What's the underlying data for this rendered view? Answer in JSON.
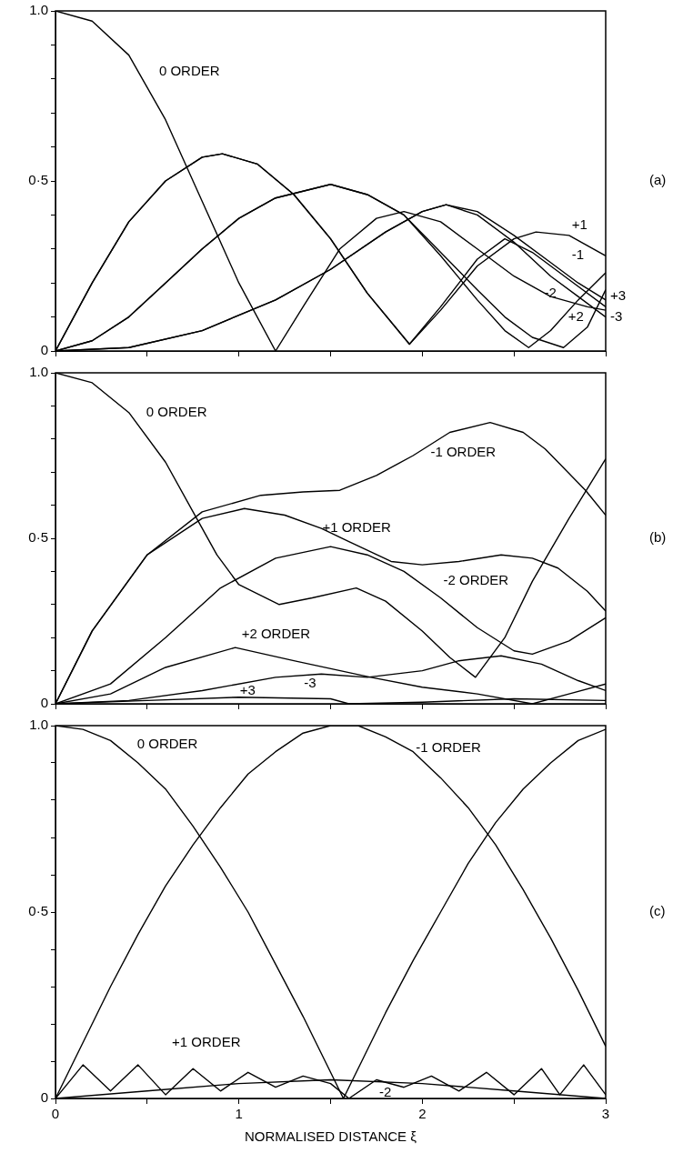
{
  "chart_data": [
    {
      "type": "line",
      "marker": "none",
      "tick_labels": "y",
      "xlim": [
        0,
        3
      ],
      "ylim": [
        0,
        1
      ],
      "xticks": [
        0,
        {
          "value": 0.5,
          "label": null
        },
        {
          "value": 1,
          "label": null
        },
        {
          "value": 1.5,
          "label": null
        },
        {
          "value": 2,
          "label": null
        },
        {
          "value": 2.5,
          "label": null
        },
        {
          "value": 3,
          "label": null
        }
      ],
      "yticks": [
        {
          "value": 0,
          "label": "0"
        },
        {
          "value": 0.1,
          "label": null
        },
        {
          "value": 0.2,
          "label": null
        },
        {
          "value": 0.3,
          "label": null
        },
        {
          "value": 0.4,
          "label": null
        },
        {
          "value": 0.5,
          "label": "0·5"
        },
        {
          "value": 0.6,
          "label": null
        },
        {
          "value": 0.7,
          "label": null
        },
        {
          "value": 0.8,
          "label": null
        },
        {
          "value": 0.9,
          "label": null
        },
        {
          "value": 1,
          "label": "1.0"
        }
      ],
      "series": [
        {
          "color": "#000000",
          "x": [
            0,
            0.2,
            0.4,
            0.6,
            0.8,
            1.0,
            1.2,
            1.35,
            1.55,
            1.75,
            1.9,
            2.1,
            2.3,
            2.5,
            2.7,
            2.9,
            3
          ],
          "values": [
            1,
            0.97,
            0.87,
            0.68,
            0.44,
            0.2,
            0.0,
            0.13,
            0.3,
            0.39,
            0.41,
            0.38,
            0.3,
            0.22,
            0.16,
            0.13,
            0.12
          ]
        },
        {
          "color": "#000000",
          "x": [
            0,
            0.2,
            0.4,
            0.6,
            0.8,
            0.91,
            1.1,
            1.3,
            1.5,
            1.7,
            1.93,
            2.1,
            2.3,
            2.5,
            2.62,
            2.8,
            3
          ],
          "values": [
            0,
            0.2,
            0.38,
            0.5,
            0.57,
            0.58,
            0.55,
            0.46,
            0.33,
            0.17,
            0.02,
            0.12,
            0.25,
            0.33,
            0.35,
            0.34,
            0.28
          ]
        },
        {
          "color": "#000000",
          "x": [
            0,
            0.2,
            0.4,
            0.6,
            0.8,
            0.91,
            1.1,
            1.3,
            1.5,
            1.7,
            1.93,
            2.1,
            2.3,
            2.45,
            2.6,
            2.8,
            3
          ],
          "values": [
            0,
            0.2,
            0.38,
            0.5,
            0.57,
            0.58,
            0.55,
            0.46,
            0.33,
            0.17,
            0.02,
            0.13,
            0.27,
            0.33,
            0.29,
            0.21,
            0.13
          ]
        },
        {
          "color": "#000000",
          "x": [
            0,
            0.2,
            0.4,
            0.6,
            0.8,
            1.0,
            1.2,
            1.5,
            1.7,
            1.9,
            2.1,
            2.3,
            2.45,
            2.58,
            2.7,
            2.85,
            3
          ],
          "values": [
            0,
            0.03,
            0.1,
            0.2,
            0.3,
            0.39,
            0.45,
            0.49,
            0.46,
            0.4,
            0.28,
            0.15,
            0.06,
            0.01,
            0.06,
            0.15,
            0.23
          ]
        },
        {
          "color": "#000000",
          "x": [
            0,
            0.2,
            0.4,
            0.6,
            0.8,
            1.0,
            1.2,
            1.5,
            1.7,
            1.9,
            2.1,
            2.3,
            2.45,
            2.6,
            2.77,
            2.9,
            3
          ],
          "values": [
            0,
            0.03,
            0.1,
            0.2,
            0.3,
            0.39,
            0.45,
            0.49,
            0.46,
            0.4,
            0.29,
            0.18,
            0.1,
            0.04,
            0.01,
            0.07,
            0.18
          ]
        },
        {
          "color": "#000000",
          "x": [
            0,
            0.4,
            0.8,
            1.2,
            1.5,
            1.8,
            2.0,
            2.13,
            2.3,
            2.5,
            2.7,
            2.85,
            3
          ],
          "values": [
            0,
            0.01,
            0.06,
            0.15,
            0.24,
            0.35,
            0.41,
            0.43,
            0.41,
            0.34,
            0.26,
            0.2,
            0.15
          ]
        },
        {
          "color": "#000000",
          "x": [
            0,
            0.4,
            0.8,
            1.2,
            1.5,
            1.8,
            2.0,
            2.13,
            2.3,
            2.5,
            2.7,
            2.85,
            3
          ],
          "values": [
            0,
            0.01,
            0.06,
            0.15,
            0.24,
            0.35,
            0.41,
            0.43,
            0.4,
            0.32,
            0.22,
            0.16,
            0.1
          ]
        }
      ],
      "annotations": [
        "0 ORDER",
        "+1",
        "-1",
        "-2",
        "+2",
        "+3",
        "-3",
        "(a)"
      ]
    },
    {
      "type": "line",
      "marker": "none",
      "tick_labels": "y",
      "xlim": [
        0,
        3
      ],
      "ylim": [
        0,
        1
      ],
      "xticks": [
        0,
        {
          "value": 0.5,
          "label": null
        },
        {
          "value": 1,
          "label": null
        },
        {
          "value": 1.5,
          "label": null
        },
        {
          "value": 2,
          "label": null
        },
        {
          "value": 2.5,
          "label": null
        },
        {
          "value": 3,
          "label": null
        }
      ],
      "yticks": [
        {
          "value": 0,
          "label": "0"
        },
        {
          "value": 0.1,
          "label": null
        },
        {
          "value": 0.2,
          "label": null
        },
        {
          "value": 0.3,
          "label": null
        },
        {
          "value": 0.4,
          "label": null
        },
        {
          "value": 0.5,
          "label": "0·5"
        },
        {
          "value": 0.6,
          "label": null
        },
        {
          "value": 0.7,
          "label": null
        },
        {
          "value": 0.8,
          "label": null
        },
        {
          "value": 0.9,
          "label": null
        },
        {
          "value": 1,
          "label": "1.0"
        }
      ],
      "series": [
        {
          "color": "#000000",
          "x": [
            0,
            0.2,
            0.4,
            0.6,
            0.75,
            0.88,
            1.0,
            1.22,
            1.4,
            1.64,
            1.8,
            2.0,
            2.15,
            2.29,
            2.45,
            2.6,
            2.8,
            3
          ],
          "values": [
            1,
            0.97,
            0.88,
            0.73,
            0.58,
            0.45,
            0.36,
            0.3,
            0.32,
            0.35,
            0.31,
            0.22,
            0.14,
            0.08,
            0.2,
            0.37,
            0.56,
            0.74
          ]
        },
        {
          "color": "#000000",
          "x": [
            0,
            0.2,
            0.5,
            0.8,
            1.12,
            1.35,
            1.55,
            1.75,
            1.95,
            2.15,
            2.37,
            2.55,
            2.67,
            2.89,
            3
          ],
          "values": [
            0,
            0.22,
            0.45,
            0.58,
            0.63,
            0.64,
            0.645,
            0.69,
            0.75,
            0.82,
            0.85,
            0.82,
            0.77,
            0.645,
            0.57
          ]
        },
        {
          "color": "#000000",
          "x": [
            0,
            0.2,
            0.5,
            0.8,
            1.03,
            1.25,
            1.45,
            1.6,
            1.83,
            2.0,
            2.2,
            2.43,
            2.6,
            2.74,
            2.9,
            3
          ],
          "values": [
            0,
            0.22,
            0.45,
            0.56,
            0.59,
            0.57,
            0.53,
            0.49,
            0.43,
            0.42,
            0.43,
            0.45,
            0.44,
            0.41,
            0.34,
            0.28
          ]
        },
        {
          "color": "#000000",
          "x": [
            0,
            0.3,
            0.6,
            0.9,
            1.2,
            1.5,
            1.7,
            1.9,
            2.1,
            2.3,
            2.5,
            2.6,
            2.8,
            3
          ],
          "values": [
            0,
            0.06,
            0.2,
            0.35,
            0.44,
            0.475,
            0.45,
            0.4,
            0.32,
            0.23,
            0.16,
            0.15,
            0.19,
            0.26
          ]
        },
        {
          "color": "#000000",
          "x": [
            0,
            0.3,
            0.6,
            0.98,
            1.3,
            1.72,
            2.0,
            2.3,
            2.6,
            2.8,
            3
          ],
          "values": [
            0,
            0.03,
            0.11,
            0.17,
            0.13,
            0.08,
            0.05,
            0.03,
            0.0,
            0.03,
            0.06
          ]
        },
        {
          "color": "#000000",
          "x": [
            0,
            0.4,
            0.8,
            1.2,
            1.45,
            1.7,
            2.0,
            2.2,
            2.43,
            2.65,
            2.85,
            3
          ],
          "values": [
            0,
            0.01,
            0.04,
            0.08,
            0.09,
            0.08,
            0.1,
            0.13,
            0.145,
            0.12,
            0.07,
            0.04
          ]
        },
        {
          "color": "#000000",
          "x": [
            0,
            0.5,
            1.0,
            1.5,
            1.6,
            2.0,
            2.5,
            3
          ],
          "values": [
            0,
            0.01,
            0.02,
            0.015,
            0,
            0.005,
            0.015,
            0.01
          ]
        }
      ],
      "annotations": [
        "0 ORDER",
        "-1 ORDER",
        "+1 ORDER",
        "-2 ORDER",
        "+2 ORDER",
        "+3",
        "-3",
        "(b)"
      ]
    },
    {
      "type": "line",
      "marker": "none",
      "xlabel": "NORMALISED DISTANCE ξ",
      "xlim": [
        0,
        3
      ],
      "ylim": [
        0,
        1
      ],
      "xticks": [
        0,
        {
          "value": 0.5,
          "label": null
        },
        1,
        {
          "value": 1.5,
          "label": null
        },
        2,
        {
          "value": 2.5,
          "label": null
        },
        3
      ],
      "yticks": [
        {
          "value": 0,
          "label": "0"
        },
        {
          "value": 0.1,
          "label": null
        },
        {
          "value": 0.2,
          "label": null
        },
        {
          "value": 0.3,
          "label": null
        },
        {
          "value": 0.4,
          "label": null
        },
        {
          "value": 0.5,
          "label": "0·5"
        },
        {
          "value": 0.6,
          "label": null
        },
        {
          "value": 0.7,
          "label": null
        },
        {
          "value": 0.8,
          "label": null
        },
        {
          "value": 0.9,
          "label": null
        },
        {
          "value": 1,
          "label": "1.0"
        }
      ],
      "series": [
        {
          "color": "#000000",
          "x": [
            0,
            0.15,
            0.3,
            0.45,
            0.6,
            0.75,
            0.9,
            1.05,
            1.2,
            1.35,
            1.5,
            1.57,
            1.65,
            1.8,
            1.95,
            2.1,
            2.25,
            2.4,
            2.55,
            2.7,
            2.85,
            3
          ],
          "values": [
            1,
            0.99,
            0.96,
            0.9,
            0.83,
            0.73,
            0.62,
            0.5,
            0.36,
            0.22,
            0.07,
            0,
            0.08,
            0.23,
            0.37,
            0.5,
            0.63,
            0.74,
            0.83,
            0.9,
            0.96,
            0.99
          ]
        },
        {
          "color": "#000000",
          "x": [
            0,
            0.15,
            0.3,
            0.45,
            0.6,
            0.75,
            0.9,
            1.05,
            1.2,
            1.35,
            1.5,
            1.57,
            1.65,
            1.8,
            1.95,
            2.1,
            2.25,
            2.4,
            2.55,
            2.7,
            2.85,
            3
          ],
          "values": [
            0,
            0.15,
            0.3,
            0.44,
            0.57,
            0.68,
            0.78,
            0.87,
            0.93,
            0.98,
            1,
            1,
            1,
            0.97,
            0.93,
            0.86,
            0.78,
            0.68,
            0.56,
            0.43,
            0.29,
            0.14
          ]
        },
        {
          "color": "#000000",
          "x": [
            0,
            0.15,
            0.3,
            0.45,
            0.6,
            0.75,
            0.9,
            1.05,
            1.2,
            1.35,
            1.5,
            1.6,
            1.75,
            1.9,
            2.05,
            2.2,
            2.35,
            2.5,
            2.65,
            2.75,
            2.88,
            3
          ],
          "values": [
            0,
            0.09,
            0.02,
            0.09,
            0.01,
            0.08,
            0.02,
            0.07,
            0.03,
            0.06,
            0.04,
            0.0,
            0.05,
            0.03,
            0.06,
            0.02,
            0.07,
            0.01,
            0.08,
            0.01,
            0.09,
            0.01
          ]
        },
        {
          "color": "#000000",
          "x": [
            0,
            0.5,
            1.0,
            1.5,
            2.0,
            2.5,
            3
          ],
          "values": [
            0,
            0.02,
            0.04,
            0.05,
            0.04,
            0.02,
            0.0
          ]
        }
      ],
      "annotations": [
        "0 ORDER",
        "-1 ORDER",
        "+1 ORDER",
        "-2",
        "(c)"
      ]
    }
  ]
}
